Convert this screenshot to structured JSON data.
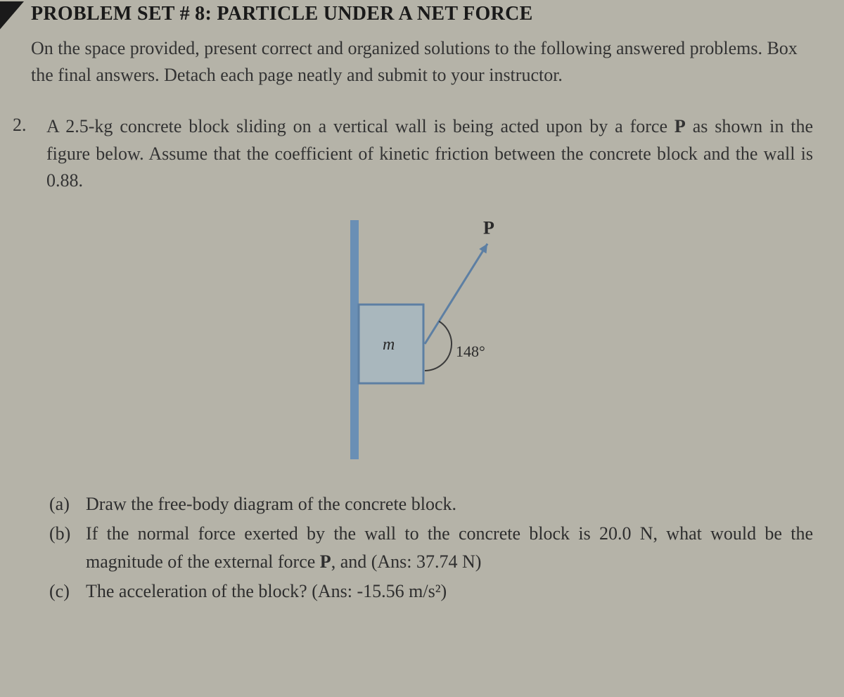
{
  "header": {
    "title": "PROBLEM SET # 8: PARTICLE UNDER A NET FORCE"
  },
  "instructions": "On the space provided, present correct and organized solutions to the following answered problems. Box the final answers. Detach each page neatly and submit to your instructor.",
  "problem": {
    "number": "2.",
    "text_before_P": "A 2.5-kg concrete block sliding on a vertical wall is being acted upon by a force ",
    "P_label": "P",
    "text_after_P": " as shown in the figure below. Assume that the coefficient of kinetic friction between the concrete block and the wall is 0.88."
  },
  "diagram": {
    "wall_color": "#6a8fb5",
    "block_stroke": "#5d7fa3",
    "block_fill": "#a9b7bd",
    "arrow_color": "#5d7fa3",
    "arc_color": "#3a3a3a",
    "text_color": "#2a2a2a",
    "mass_label": "m",
    "force_label": "P",
    "angle_label": "148°",
    "angle_deg_from_down": 148,
    "font_size_labels": 24,
    "font_size_angle": 22
  },
  "questions": {
    "a": {
      "label": "(a)",
      "text": "Draw the free-body diagram of the concrete block."
    },
    "b": {
      "label": "(b)",
      "text_before_P": "If the normal force exerted by the wall to the concrete block is 20.0 N, what would be the magnitude of the external force ",
      "P_label": "P",
      "text_after_P": ", and (Ans: 37.74 N)"
    },
    "c": {
      "label": "(c)",
      "text": "The acceleration of the block? (Ans: -15.56 m/s²)"
    }
  },
  "page": {
    "bg": "#b5b3a8"
  }
}
